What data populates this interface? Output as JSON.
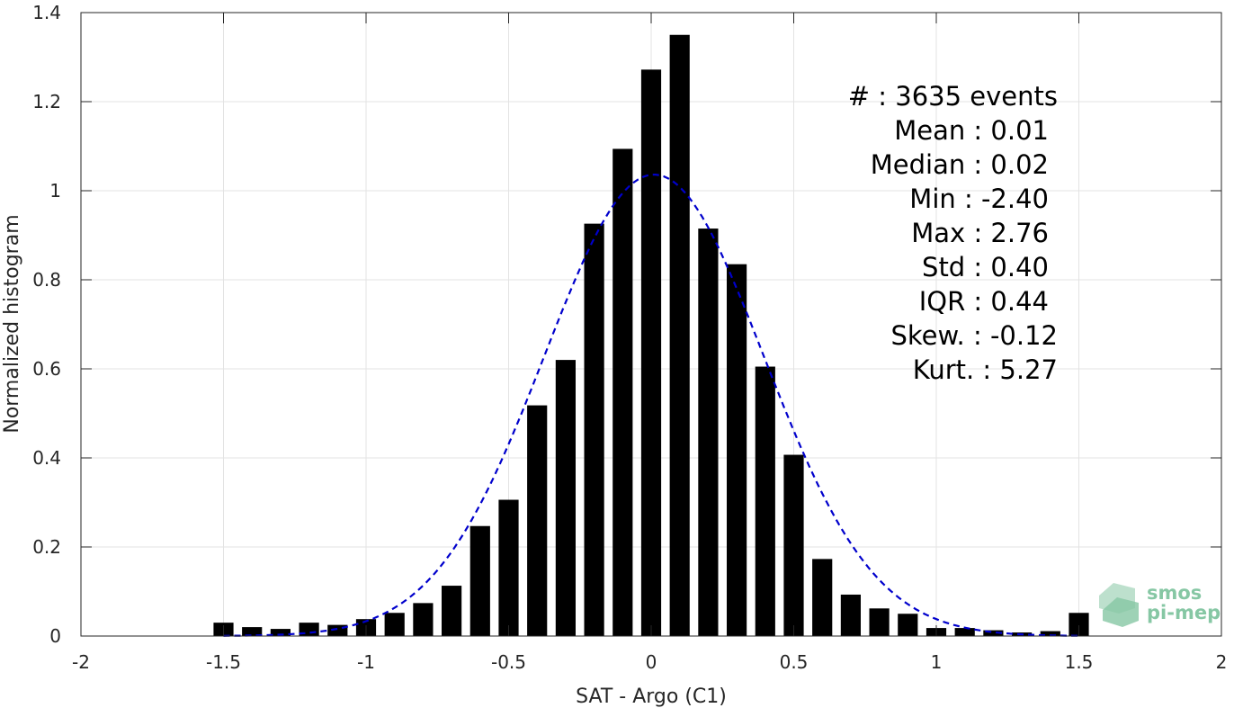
{
  "chart_data": {
    "type": "bar",
    "xlabel": "SAT - Argo (C1)",
    "ylabel": "Normalized histogram",
    "xlim": [
      -2,
      2
    ],
    "ylim": [
      0,
      1.4
    ],
    "xticks": [
      -2,
      -1.5,
      -1,
      -0.5,
      0,
      0.5,
      1,
      1.5,
      2
    ],
    "xtick_labels": [
      "-2",
      "-1.5",
      "-1",
      "-0.5",
      "0",
      "0.5",
      "1",
      "1.5",
      "2"
    ],
    "yticks": [
      0,
      0.2,
      0.4,
      0.6,
      0.8,
      1,
      1.2,
      1.4
    ],
    "ytick_labels": [
      "0",
      "0.2",
      "0.4",
      "0.6",
      "0.8",
      "1",
      "1.2",
      "1.4"
    ],
    "grid": true,
    "bin_centers": [
      -1.5,
      -1.4,
      -1.3,
      -1.2,
      -1.1,
      -1.0,
      -0.9,
      -0.8,
      -0.7,
      -0.6,
      -0.5,
      -0.4,
      -0.3,
      -0.2,
      -0.1,
      0.0,
      0.1,
      0.2,
      0.3,
      0.4,
      0.5,
      0.6,
      0.7,
      0.8,
      0.9,
      1.0,
      1.1,
      1.2,
      1.3,
      1.4,
      1.5
    ],
    "values": [
      0.03,
      0.02,
      0.016,
      0.03,
      0.025,
      0.038,
      0.052,
      0.074,
      0.113,
      0.247,
      0.306,
      0.518,
      0.62,
      0.926,
      1.094,
      1.272,
      1.35,
      0.915,
      0.835,
      0.605,
      0.407,
      0.173,
      0.093,
      0.062,
      0.05,
      0.018,
      0.018,
      0.013,
      0.008,
      0.011,
      0.052
    ],
    "bar_color": "#000000",
    "fit_curve": {
      "style": "dashed",
      "color": "#0000cc",
      "mean": 0.01,
      "std": 0.385,
      "x_range": [
        -1.5,
        1.5
      ]
    },
    "stats": [
      "#  : 3635 events",
      "Mean : 0.01",
      "Median : 0.02",
      "Min : -2.40",
      "Max : 2.76",
      "Std : 0.40",
      "IQR : 0.44",
      "Skew. : -0.12",
      "Kurt. : 5.27"
    ],
    "stats_placement": "top-right"
  },
  "logo": {
    "line1": "smos",
    "line2": "pi-mep",
    "color": "#86c7a4"
  }
}
